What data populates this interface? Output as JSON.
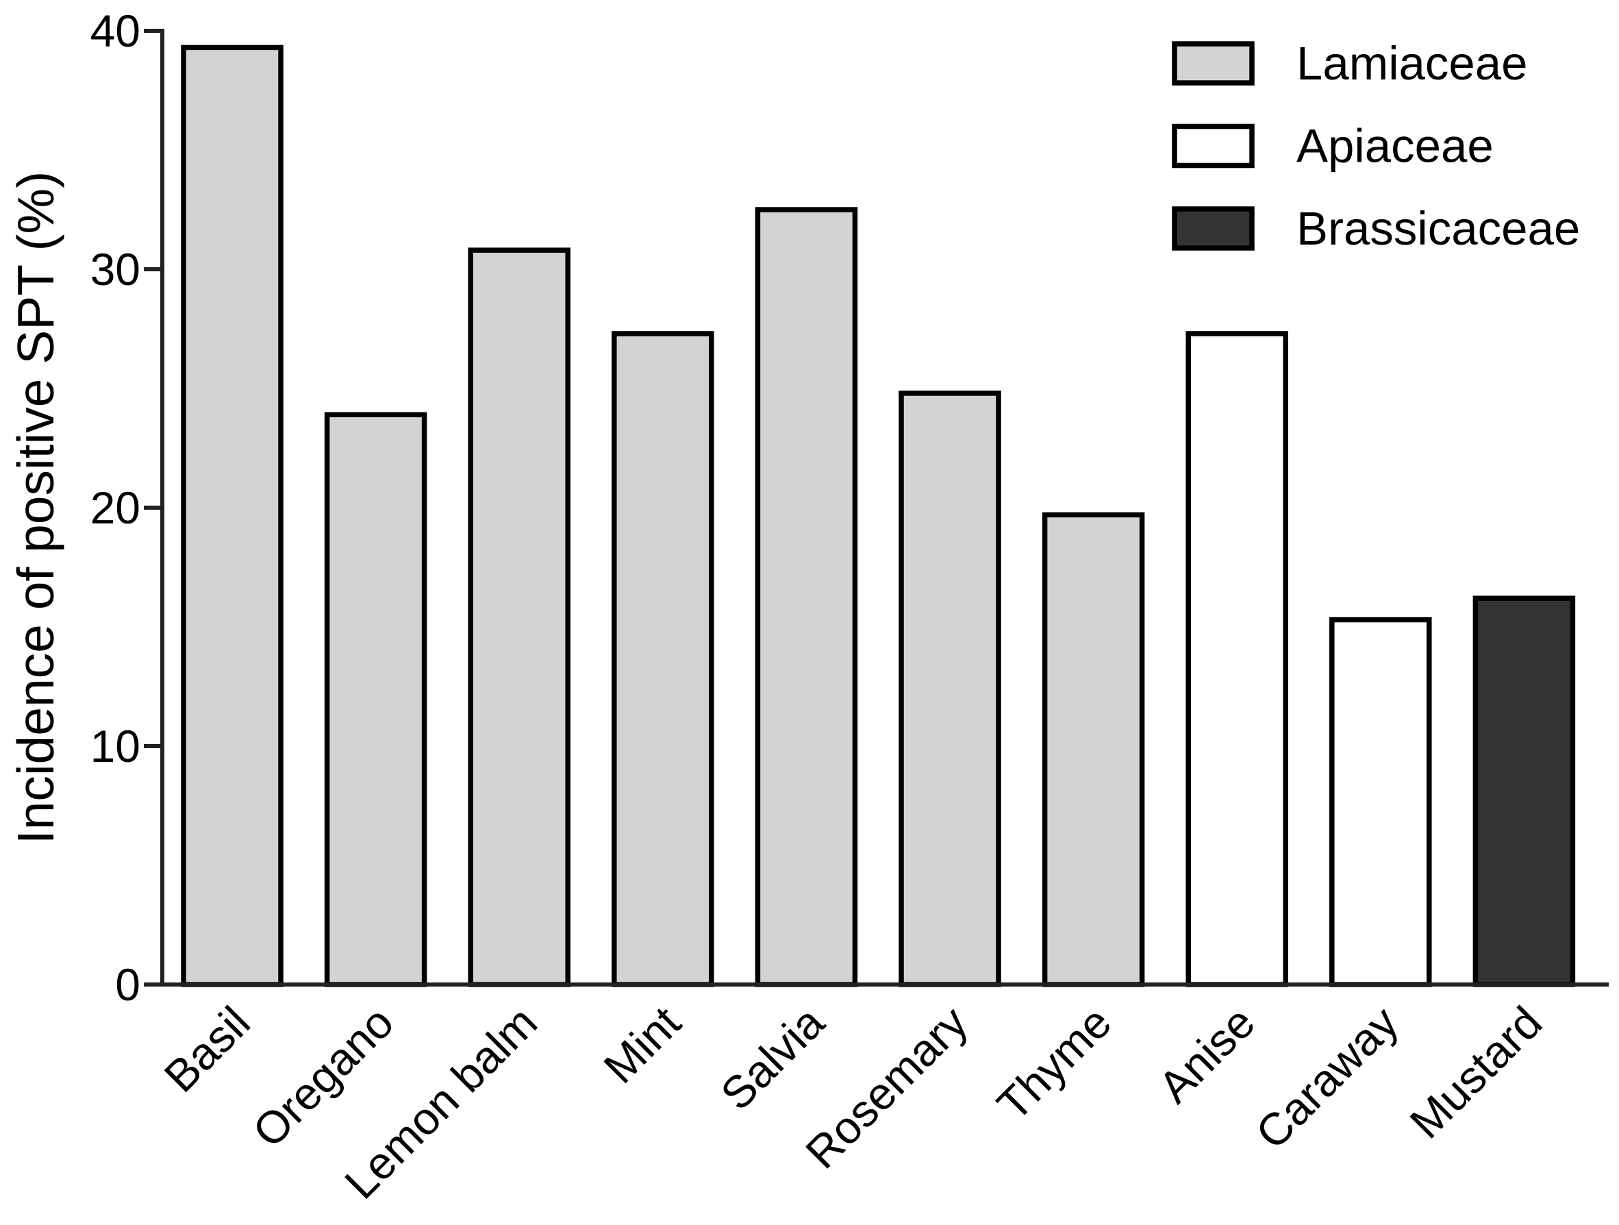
{
  "chart_data": {
    "type": "bar",
    "y_label": "Incidence of positive SPT (%)",
    "categories": [
      "Basil",
      "Oregano",
      "Lemon balm",
      "Mint",
      "Salvia",
      "Rosemary",
      "Thyme",
      "Anise",
      "Caraway",
      "Mustard"
    ],
    "series": [
      {
        "name": "Lamiaceae",
        "color": "#d3d3d3",
        "values": [
          39.3,
          23.9,
          30.8,
          27.3,
          32.5,
          24.8,
          19.7,
          null,
          null,
          null
        ]
      },
      {
        "name": "Apiaceae",
        "color": "#ffffff",
        "values": [
          null,
          null,
          null,
          null,
          null,
          null,
          null,
          27.3,
          15.3,
          null
        ]
      },
      {
        "name": "Brassicaceae",
        "color": "#333333",
        "values": [
          null,
          null,
          null,
          null,
          null,
          null,
          null,
          null,
          null,
          16.2
        ]
      }
    ],
    "ylim": [
      0,
      40
    ],
    "yticks": [
      0,
      10,
      20,
      30,
      40
    ],
    "grid": false,
    "legend": "top-right"
  }
}
